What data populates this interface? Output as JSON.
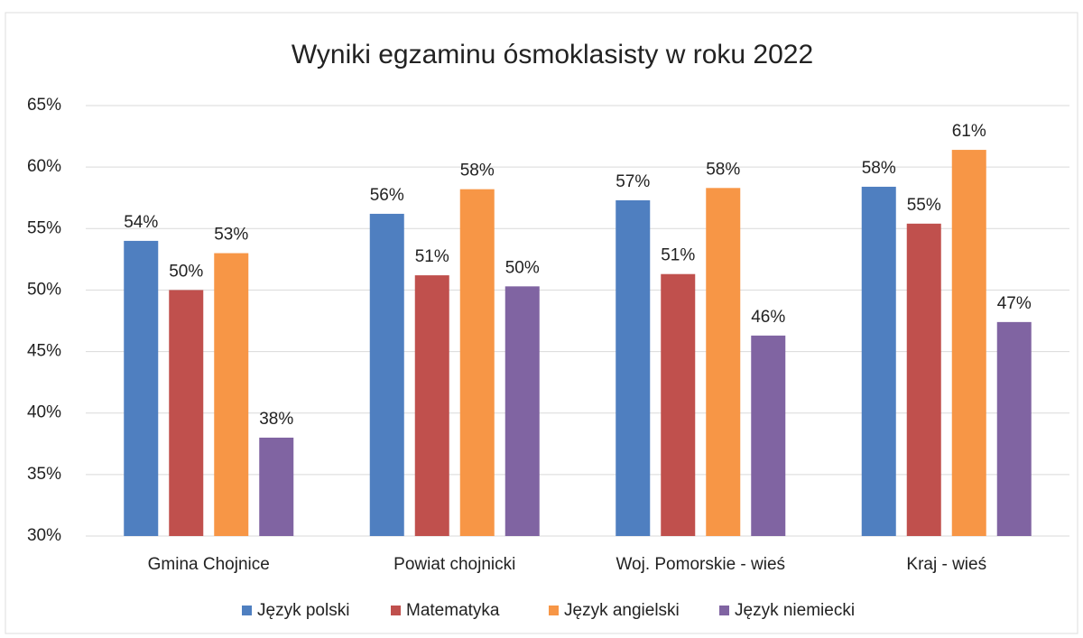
{
  "chart_data": {
    "type": "bar",
    "title": "Wyniki egzaminu ósmoklasisty w roku 2022",
    "categories": [
      "Gmina Chojnice",
      "Powiat chojnicki",
      "Woj. Pomorskie - wieś",
      "Kraj - wieś"
    ],
    "series": [
      {
        "name": "Język polski",
        "color": "#4f7fc0",
        "values": [
          54,
          56.2,
          57.3,
          58.4
        ],
        "value_labels": [
          "54%",
          "56%",
          "57%",
          "58%"
        ]
      },
      {
        "name": "Matematyka",
        "color": "#c0504d",
        "values": [
          50,
          51.2,
          51.3,
          55.4
        ],
        "value_labels": [
          "50%",
          "51%",
          "51%",
          "55%"
        ]
      },
      {
        "name": "Język angielski",
        "color": "#f79646",
        "values": [
          53,
          58.2,
          58.3,
          61.4
        ],
        "value_labels": [
          "53%",
          "58%",
          "58%",
          "61%"
        ]
      },
      {
        "name": "Język niemiecki",
        "color": "#8064a2",
        "values": [
          38,
          50.3,
          46.3,
          47.4
        ],
        "value_labels": [
          "38%",
          "50%",
          "46%",
          "47%"
        ]
      }
    ],
    "ylim": [
      30,
      65
    ],
    "yticks": [
      {
        "value": 30,
        "label": "30%"
      },
      {
        "value": 35,
        "label": "35%"
      },
      {
        "value": 40,
        "label": "40%"
      },
      {
        "value": 45,
        "label": "45%"
      },
      {
        "value": 50,
        "label": "50%"
      },
      {
        "value": 55,
        "label": "55%"
      },
      {
        "value": 60,
        "label": "60%"
      },
      {
        "value": 65,
        "label": "65%"
      }
    ],
    "grid": true,
    "legend": "bottom"
  }
}
